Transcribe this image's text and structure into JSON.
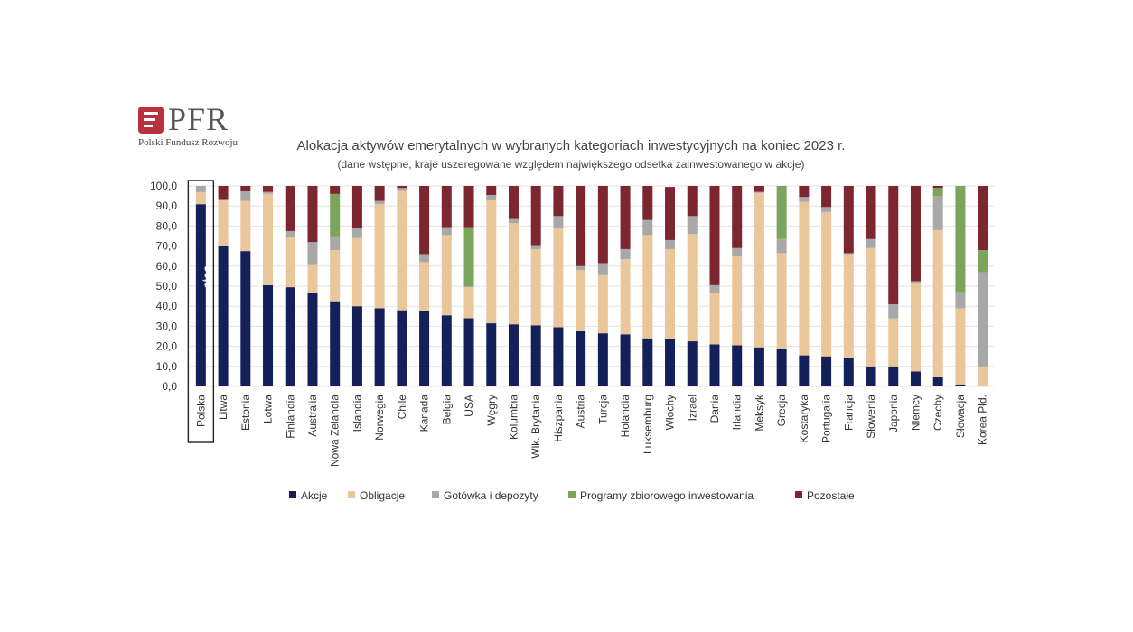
{
  "brand": {
    "name": "PFR",
    "subtitle": "Polski Fundusz Rozwoju",
    "color": "#b8323e"
  },
  "chart_data": {
    "type": "bar",
    "stacked": true,
    "title": "Alokacja aktywów emerytalnych w wybranych kategoriach inwestycyjnych na koniec 2023 r.",
    "subtitle": "(dane wstępne, kraje uszeregowane względem największego odsetka zainwestowanego w akcje)",
    "xlabel": "",
    "ylabel": "",
    "ylim": [
      0,
      100
    ],
    "yticks": [
      "0,0",
      "10,0",
      "20,0",
      "30,0",
      "40,0",
      "50,0",
      "60,0",
      "70,0",
      "80,0",
      "90,0",
      "100,0"
    ],
    "grid": true,
    "legend_position": "bottom",
    "highlight": {
      "category": "Polska",
      "label": "90,9"
    },
    "categories": [
      "Polska",
      "Litwa",
      "Estonia",
      "Łotwa",
      "Finlandia",
      "Australia",
      "Nowa Zelandia",
      "Islandia",
      "Norwegia",
      "Chile",
      "Kanada",
      "Belgia",
      "USA",
      "Węgry",
      "Kolumbia",
      "Wlk. Brytania",
      "Hiszpania",
      "Austria",
      "Turcja",
      "Holandia",
      "Luksemburg",
      "Włochy",
      "Izrael",
      "Dania",
      "Irlandia",
      "Meksyk",
      "Grecja",
      "Kostaryka",
      "Portugalia",
      "Francja",
      "Słowenia",
      "Japonia",
      "Niemcy",
      "Czechy",
      "Słowacja",
      "Korea Płd."
    ],
    "series": [
      {
        "name": "Akcje",
        "color": "#14205a",
        "values": [
          90.9,
          70,
          67.5,
          50.5,
          49.5,
          46.5,
          42.5,
          40,
          39,
          38,
          37.5,
          35.5,
          34,
          31.5,
          31,
          30.5,
          29.5,
          27.5,
          26.5,
          26,
          24,
          23.5,
          22.5,
          21,
          20.5,
          19.5,
          18.5,
          15.5,
          15,
          14,
          10,
          10,
          7.5,
          4.5,
          1,
          0
        ]
      },
      {
        "name": "Obligacje",
        "color": "#eac79a",
        "values": [
          6,
          23,
          25,
          45.5,
          25,
          14.5,
          25.5,
          34,
          52,
          60,
          24.5,
          40,
          15.5,
          61.5,
          50.5,
          38,
          49.5,
          30.5,
          29,
          37.5,
          51.5,
          45,
          53.5,
          25.5,
          44.5,
          77,
          48,
          76.5,
          72,
          52,
          59,
          24,
          44,
          73.5,
          38,
          10
        ]
      },
      {
        "name": "Gotówka i depozyty",
        "color": "#a8a8a8",
        "values": [
          3.1,
          0.5,
          5,
          1,
          3,
          11,
          7,
          5,
          1.5,
          1,
          4,
          4,
          0.5,
          2.5,
          2,
          2,
          6,
          2,
          6,
          5,
          7.5,
          4.5,
          9,
          4,
          4,
          0.5,
          7,
          2.5,
          2.5,
          0.5,
          4.5,
          7,
          1,
          17,
          8,
          47
        ]
      },
      {
        "name": "Programy zbiorowego inwestowania",
        "color": "#7aa55b",
        "values": [
          0,
          0,
          0,
          0,
          0,
          0,
          21,
          0,
          0,
          0,
          0,
          0,
          29.5,
          0,
          0,
          0,
          0,
          0,
          0,
          0,
          0,
          0,
          0,
          0,
          0,
          0,
          26.5,
          0,
          0,
          0,
          0,
          0,
          0,
          4,
          53,
          11
        ]
      },
      {
        "name": "Pozostałe",
        "color": "#7e2630",
        "values": [
          0,
          6.5,
          2.5,
          3,
          22.5,
          28,
          4,
          21,
          7.5,
          1,
          34,
          20.5,
          20.5,
          4.5,
          16.5,
          29.5,
          15,
          40,
          38.5,
          31.5,
          17,
          26.5,
          15,
          49.5,
          31,
          3,
          0,
          5.5,
          10.5,
          33.5,
          26.5,
          59,
          47.5,
          1,
          0,
          32
        ]
      }
    ]
  }
}
